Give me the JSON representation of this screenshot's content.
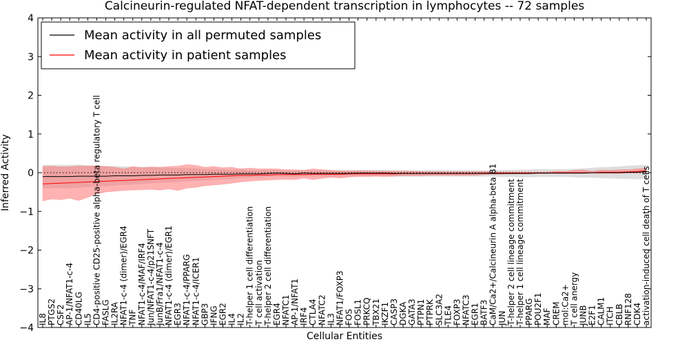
{
  "chart_data": {
    "type": "line",
    "title": "Calcineurin-regulated NFAT-dependent transcription in lymphocytes -- 72 samples",
    "xlabel": "Cellular Entities",
    "ylabel": "Inferred Activity",
    "ylim": [
      -4,
      4
    ],
    "yticks": [
      "−4",
      "−3",
      "−2",
      "−1",
      "0",
      "1",
      "2",
      "3",
      "4"
    ],
    "grid": false,
    "legend_position": "top-left",
    "categories": [
      "IL8",
      "PTGS2",
      "CSF2",
      "AP-1/NFAT1-c-4",
      "CD40LG",
      "IL5",
      "CD4-positive CD25-positive alpha-beta regulatory T cell",
      "FASLG",
      "IL2RA",
      "NFAT1-c-4 (dimer)/EGR4",
      "TNF",
      "NFAT1-c-4/MAF/IRF4",
      "Jun/NFAT1-c-4/p21SNFT",
      "JunB/Fra1/NFAT1-c-4",
      "NFAT1-c-4 (dimer)/EGR1",
      "EGR3",
      "NFAT1-c-4/PPARG",
      "NFAT1-c-4/ICER1",
      "GBP3",
      "IFNG",
      "EGR2",
      "IL4",
      "IL2",
      "T-helper 1 cell differentiation",
      "T cell activation",
      "T-helper 2 cell differentiation",
      "EGR4",
      "NFATC1",
      "AP-1/NFAT1",
      "IRF4",
      "CTLA4",
      "NFATC2",
      "IL3",
      "NFAT1/FOXP3",
      "FOS",
      "FOSL1",
      "PRKCQ",
      "TBX21",
      "IKZF1",
      "CASP3",
      "DGKA",
      "GATA3",
      "PTPN1",
      "PTPRK",
      "SLC3A2",
      "TLE4",
      "FOXP3",
      "NFATC3",
      "EGR1",
      "BATF3",
      "CaM/Ca2+/Calcineurin A alpha-beta B1",
      "JUN",
      "T-helper 2 cell lineage commitment",
      "T-helper 1 cell lineage commitment",
      "PPARG",
      "POU2F1",
      "MAF",
      "CREM",
      "mol:Ca2+",
      "T cell anergy",
      "JUNB",
      "E2F1",
      "CALM1",
      "ITCH",
      "CBLB",
      "RNF128",
      "CDK4",
      "activation-induced cell death of T cells"
    ],
    "series": [
      {
        "name": "Mean activity in all permuted samples",
        "color": "#000000",
        "values": [
          -0.1,
          -0.1,
          -0.1,
          -0.1,
          -0.09,
          -0.09,
          -0.09,
          -0.09,
          -0.08,
          -0.08,
          -0.08,
          -0.07,
          -0.07,
          -0.06,
          -0.06,
          -0.06,
          -0.05,
          -0.05,
          -0.05,
          -0.04,
          -0.04,
          -0.04,
          -0.03,
          -0.03,
          -0.03,
          -0.02,
          -0.01,
          -0.02,
          -0.03,
          -0.01,
          -0.02,
          -0.02,
          -0.02,
          -0.02,
          -0.02,
          -0.01,
          -0.01,
          -0.01,
          -0.01,
          -0.02,
          -0.02,
          -0.02,
          -0.02,
          -0.02,
          -0.02,
          -0.02,
          -0.02,
          -0.02,
          -0.02,
          -0.02,
          -0.02,
          -0.02,
          -0.02,
          -0.02,
          -0.02,
          -0.01,
          -0.01,
          -0.01,
          -0.01,
          -0.01,
          -0.01,
          0.0,
          0.0,
          0.0,
          0.0,
          0.01,
          0.01,
          0.02
        ],
        "band": [
          0.3,
          0.3,
          0.3,
          0.3,
          0.3,
          0.28,
          0.27,
          0.26,
          0.25,
          0.24,
          0.23,
          0.22,
          0.21,
          0.2,
          0.19,
          0.18,
          0.17,
          0.16,
          0.15,
          0.14,
          0.13,
          0.12,
          0.11,
          0.1,
          0.09,
          0.09,
          0.08,
          0.08,
          0.08,
          0.08,
          0.08,
          0.08,
          0.08,
          0.08,
          0.08,
          0.08,
          0.08,
          0.08,
          0.08,
          0.08,
          0.08,
          0.08,
          0.08,
          0.08,
          0.08,
          0.08,
          0.08,
          0.08,
          0.08,
          0.08,
          0.08,
          0.09,
          0.09,
          0.1,
          0.1,
          0.1,
          0.1,
          0.1,
          0.1,
          0.11,
          0.12,
          0.13,
          0.14,
          0.15,
          0.16,
          0.17,
          0.18,
          0.18
        ]
      },
      {
        "name": "Mean activity in patient samples",
        "color": "#ff0000",
        "fill": "#ff6666",
        "values": [
          -0.29,
          -0.28,
          -0.27,
          -0.26,
          -0.25,
          -0.24,
          -0.23,
          -0.22,
          -0.21,
          -0.2,
          -0.19,
          -0.18,
          -0.17,
          -0.16,
          -0.15,
          -0.14,
          -0.13,
          -0.12,
          -0.11,
          -0.1,
          -0.09,
          -0.08,
          -0.07,
          -0.07,
          -0.06,
          -0.06,
          -0.05,
          -0.05,
          -0.05,
          -0.05,
          -0.04,
          -0.04,
          -0.04,
          -0.04,
          -0.03,
          -0.03,
          -0.03,
          -0.03,
          -0.03,
          -0.03,
          -0.02,
          -0.02,
          -0.02,
          -0.02,
          -0.02,
          -0.02,
          -0.02,
          -0.02,
          -0.02,
          -0.01,
          -0.01,
          -0.01,
          -0.01,
          -0.01,
          -0.01,
          -0.01,
          -0.01,
          0.0,
          0.0,
          0.0,
          0.0,
          0.0,
          0.01,
          0.01,
          0.01,
          0.02,
          0.03,
          0.05
        ],
        "lower": [
          -0.73,
          -0.68,
          -0.7,
          -0.66,
          -0.72,
          -0.64,
          -0.55,
          -0.5,
          -0.48,
          -0.46,
          -0.45,
          -0.44,
          -0.43,
          -0.45,
          -0.42,
          -0.46,
          -0.4,
          -0.38,
          -0.34,
          -0.32,
          -0.3,
          -0.27,
          -0.24,
          -0.22,
          -0.2,
          -0.19,
          -0.18,
          -0.17,
          -0.18,
          -0.14,
          -0.18,
          -0.15,
          -0.12,
          -0.14,
          -0.11,
          -0.1,
          -0.1,
          -0.09,
          -0.1,
          -0.09,
          -0.08,
          -0.08,
          -0.08,
          -0.07,
          -0.07,
          -0.07,
          -0.07,
          -0.07,
          -0.07,
          -0.05,
          -0.04,
          -0.04,
          -0.03,
          -0.03,
          -0.03,
          -0.02,
          -0.02,
          -0.02,
          -0.02,
          -0.02,
          -0.02,
          -0.02,
          -0.02,
          -0.02,
          -0.02,
          -0.01,
          -0.01,
          0.0
        ],
        "upper": [
          0.16,
          0.17,
          0.15,
          0.16,
          0.17,
          0.17,
          0.18,
          0.16,
          0.14,
          0.1,
          0.16,
          0.13,
          0.15,
          0.14,
          0.16,
          0.17,
          0.21,
          0.19,
          0.14,
          0.16,
          0.13,
          0.14,
          0.1,
          0.12,
          0.1,
          0.1,
          0.1,
          0.08,
          0.08,
          0.06,
          0.1,
          0.08,
          0.06,
          0.05,
          0.05,
          0.05,
          0.05,
          0.04,
          0.04,
          0.04,
          0.04,
          0.04,
          0.03,
          0.03,
          0.03,
          0.03,
          0.03,
          0.03,
          0.03,
          0.03,
          0.02,
          0.02,
          0.02,
          0.02,
          0.02,
          0.02,
          0.02,
          0.04,
          0.03,
          0.06,
          0.07,
          0.04,
          0.07,
          0.06,
          0.08,
          0.08,
          0.1,
          0.12
        ]
      }
    ]
  }
}
